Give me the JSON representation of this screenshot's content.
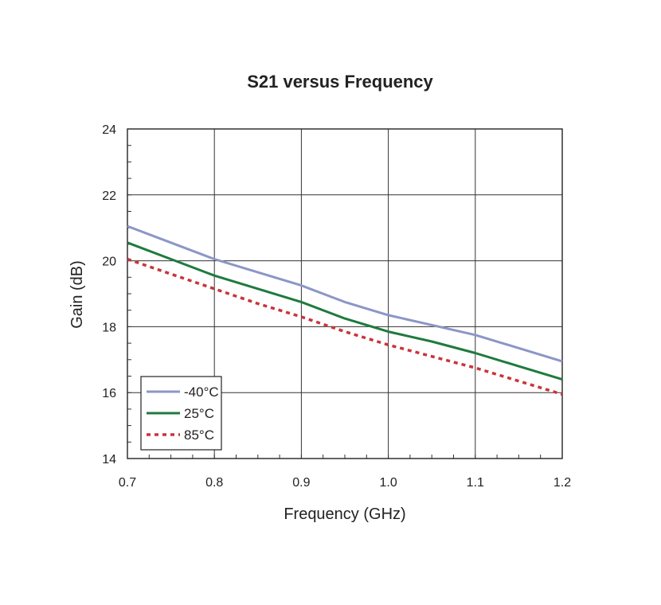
{
  "chart_data": {
    "type": "line",
    "title": "S21 versus Frequency",
    "xlabel": "Frequency (GHz)",
    "ylabel": "Gain (dB)",
    "xlim": [
      0.7,
      1.2
    ],
    "ylim": [
      14,
      24
    ],
    "xticks": [
      "0.7",
      "0.8",
      "0.9",
      "1.0",
      "1.1",
      "1.2"
    ],
    "yticks": [
      "14",
      "16",
      "18",
      "20",
      "22",
      "24"
    ],
    "grid": true,
    "legend_position": "bottom-left",
    "x": [
      0.7,
      0.75,
      0.8,
      0.85,
      0.9,
      0.95,
      1.0,
      1.05,
      1.1,
      1.15,
      1.2
    ],
    "series": [
      {
        "name": "-40°C",
        "color": "#8C96C6",
        "style": "solid",
        "values": [
          21.05,
          20.55,
          20.05,
          19.65,
          19.25,
          18.75,
          18.35,
          18.05,
          17.75,
          17.35,
          16.95
        ]
      },
      {
        "name": "25°C",
        "color": "#1F7A3F",
        "style": "solid",
        "values": [
          20.55,
          20.05,
          19.55,
          19.15,
          18.75,
          18.25,
          17.85,
          17.55,
          17.2,
          16.8,
          16.4
        ]
      },
      {
        "name": "85°C",
        "color": "#C8353A",
        "style": "dotted",
        "values": [
          20.05,
          19.6,
          19.15,
          18.7,
          18.3,
          17.85,
          17.45,
          17.1,
          16.75,
          16.35,
          15.95
        ]
      }
    ]
  }
}
